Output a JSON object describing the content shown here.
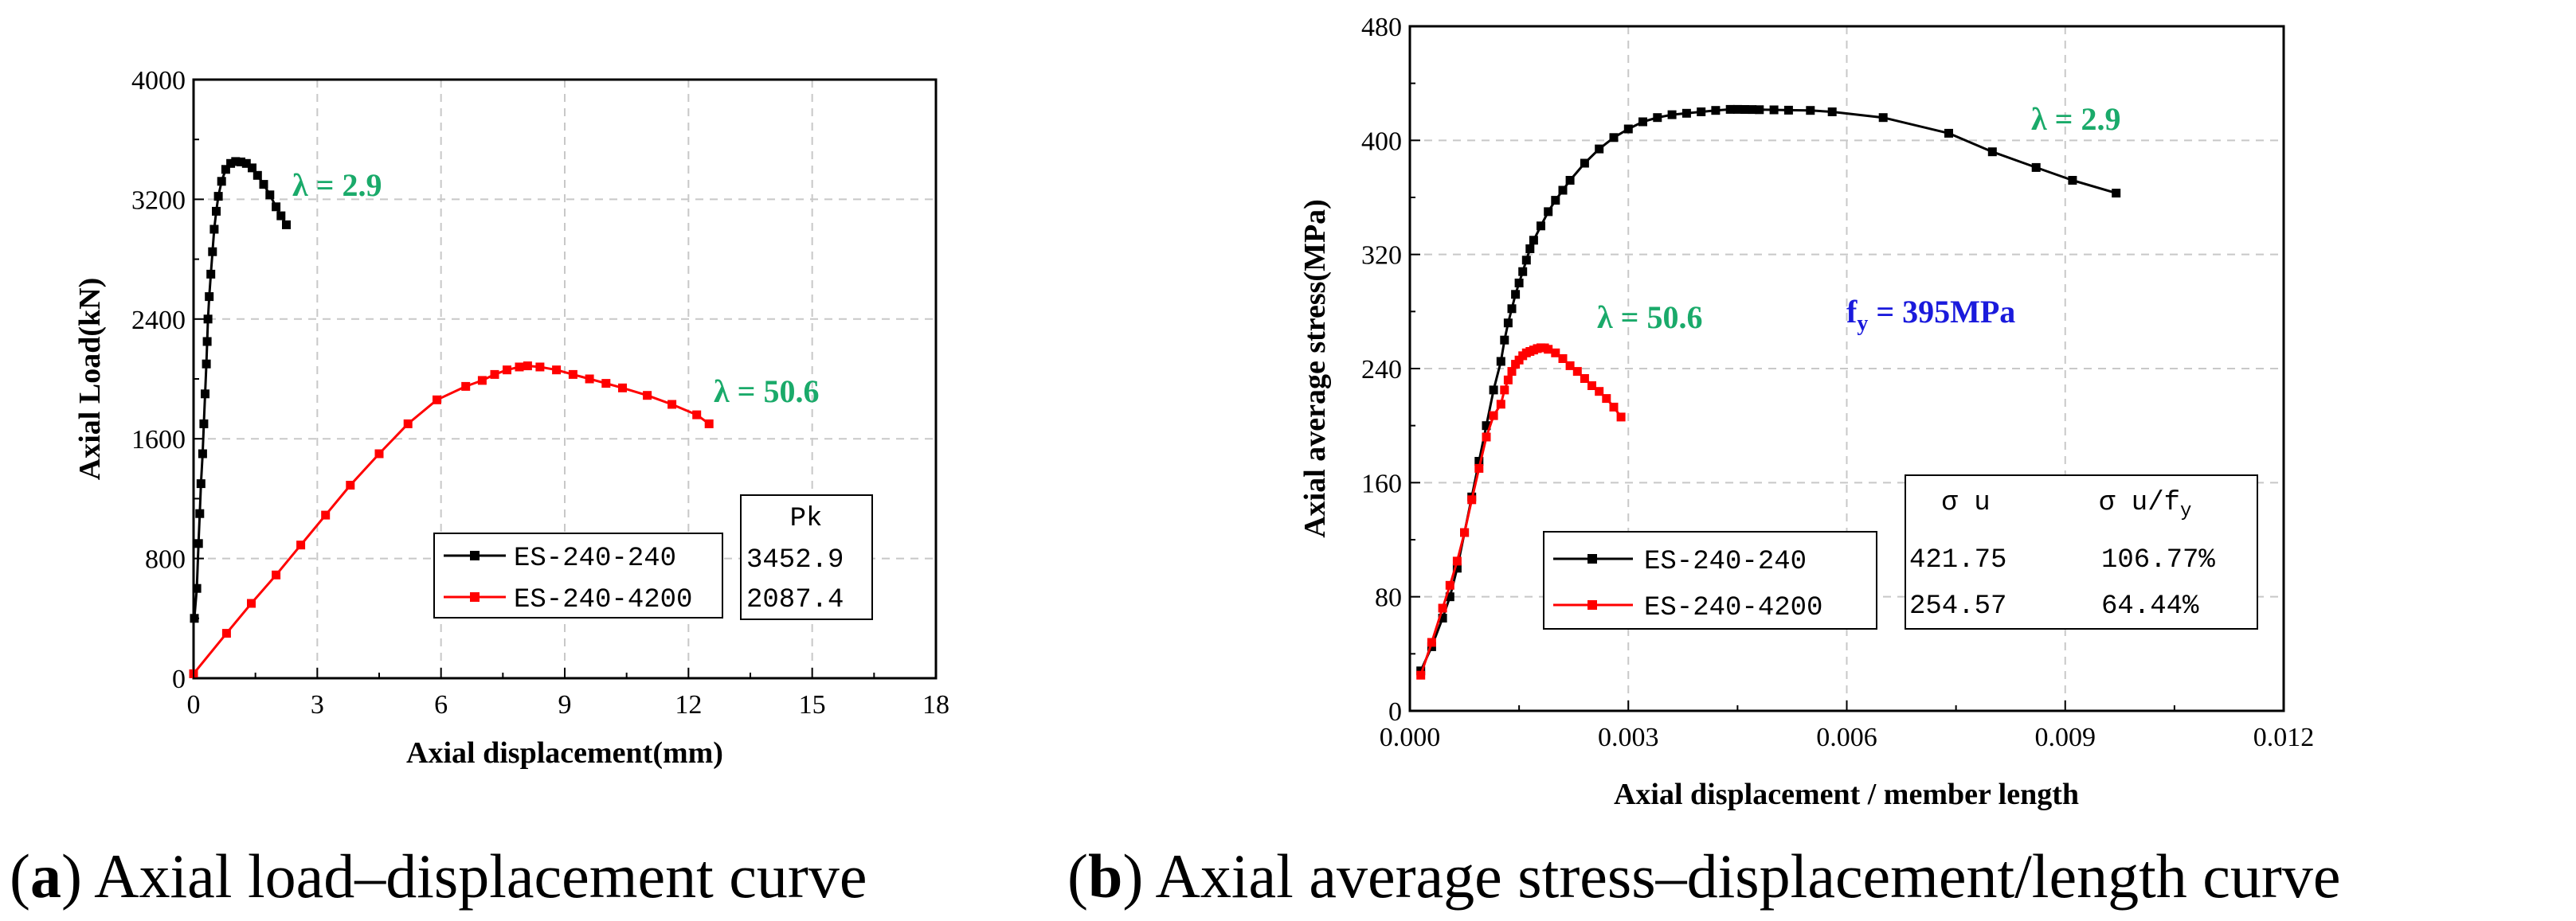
{
  "chart_data": [
    {
      "type": "line",
      "ylabel": "Axial Load(kN)",
      "xlabel": "Axial displacement(mm)",
      "xlim": [
        0,
        18
      ],
      "ylim": [
        0,
        4000
      ],
      "xticks": [
        "0",
        "3",
        "6",
        "9",
        "12",
        "15",
        "18"
      ],
      "yticks": [
        "0",
        "800",
        "1600",
        "2400",
        "3200",
        "4000"
      ],
      "grid": true,
      "legend_position": "bottom-right",
      "series": [
        {
          "name": "ES-240-240",
          "color": "#000000",
          "x": [
            0.02,
            0.08,
            0.12,
            0.15,
            0.18,
            0.22,
            0.25,
            0.28,
            0.31,
            0.33,
            0.35,
            0.38,
            0.42,
            0.46,
            0.5,
            0.55,
            0.6,
            0.68,
            0.78,
            0.9,
            1.02,
            1.15,
            1.28,
            1.42,
            1.55,
            1.7,
            1.85,
            2.0,
            2.12,
            2.25
          ],
          "y": [
            400,
            600,
            900,
            1100,
            1300,
            1500,
            1700,
            1900,
            2100,
            2250,
            2400,
            2550,
            2700,
            2850,
            3000,
            3120,
            3220,
            3320,
            3400,
            3440,
            3452.9,
            3450,
            3440,
            3410,
            3360,
            3300,
            3230,
            3150,
            3090,
            3030
          ]
        },
        {
          "name": "ES-240-4200",
          "color": "#ff0000",
          "x": [
            0,
            0.8,
            1.4,
            2.0,
            2.6,
            3.2,
            3.8,
            4.5,
            5.2,
            5.9,
            6.6,
            7.0,
            7.3,
            7.6,
            7.9,
            8.1,
            8.4,
            8.8,
            9.2,
            9.6,
            10.0,
            10.4,
            11.0,
            11.6,
            12.2,
            12.5
          ],
          "y": [
            30,
            300,
            500,
            690,
            890,
            1090,
            1290,
            1500,
            1700,
            1860,
            1950,
            1990,
            2030,
            2060,
            2080,
            2087.4,
            2080,
            2060,
            2030,
            2000,
            1970,
            1940,
            1890,
            1830,
            1760,
            1700
          ]
        }
      ],
      "annotations": [
        {
          "text": "λ = 2.9",
          "color": "#1aaa6a"
        },
        {
          "text": "λ = 50.6",
          "color": "#1aaa6a"
        }
      ],
      "table": {
        "header": [
          "Pk"
        ],
        "rows": [
          [
            "3452.9"
          ],
          [
            "2087.4"
          ]
        ]
      }
    },
    {
      "type": "line",
      "ylabel": "Axial average stress(MPa)",
      "xlabel": "Axial displacement / member length",
      "xlim": [
        0,
        0.012
      ],
      "ylim": [
        0,
        480
      ],
      "xticks": [
        "0.000",
        "0.003",
        "0.006",
        "0.009",
        "0.012"
      ],
      "yticks": [
        "0",
        "80",
        "160",
        "240",
        "320",
        "400",
        "480"
      ],
      "grid": true,
      "legend_position": "bottom-center",
      "series": [
        {
          "name": "ES-240-240",
          "color": "#000000",
          "x": [
            0.00015,
            0.0003,
            0.00045,
            0.00055,
            0.00065,
            0.00075,
            0.00085,
            0.00095,
            0.00105,
            0.00115,
            0.00125,
            0.0013,
            0.00135,
            0.0014,
            0.00145,
            0.0015,
            0.00155,
            0.0016,
            0.00165,
            0.0017,
            0.0018,
            0.0019,
            0.002,
            0.0021,
            0.0022,
            0.0024,
            0.0026,
            0.0028,
            0.003,
            0.0032,
            0.0034,
            0.0036,
            0.0038,
            0.004,
            0.0042,
            0.0044,
            0.0045,
            0.0046,
            0.0047,
            0.0048,
            0.005,
            0.0052,
            0.0055,
            0.0058,
            0.0065,
            0.0074,
            0.008,
            0.0086,
            0.0091,
            0.0097
          ],
          "y": [
            28,
            45,
            65,
            80,
            100,
            125,
            150,
            175,
            200,
            225,
            245,
            260,
            272,
            282,
            292,
            300,
            308,
            316,
            324,
            330,
            340,
            350,
            358,
            365,
            372,
            384,
            394,
            402,
            408,
            413,
            416,
            418,
            419,
            420,
            421,
            421.75,
            421.75,
            421.7,
            421.6,
            421.5,
            421.4,
            421.2,
            421,
            420,
            416,
            405,
            392,
            381,
            372,
            363
          ]
        },
        {
          "name": "ES-240-4200",
          "color": "#ff0000",
          "x": [
            0.00015,
            0.0003,
            0.00045,
            0.00055,
            0.00065,
            0.00075,
            0.00085,
            0.00095,
            0.00105,
            0.00115,
            0.00125,
            0.0013,
            0.00135,
            0.0014,
            0.00145,
            0.0015,
            0.00155,
            0.0016,
            0.00165,
            0.0017,
            0.00175,
            0.0018,
            0.00185,
            0.0019,
            0.002,
            0.0021,
            0.0022,
            0.0023,
            0.0024,
            0.0025,
            0.0026,
            0.0027,
            0.0028,
            0.0029
          ],
          "y": [
            25,
            48,
            72,
            88,
            105,
            125,
            148,
            170,
            192,
            207,
            215,
            225,
            232,
            238,
            243,
            246,
            249,
            251,
            252,
            253,
            254,
            254.57,
            254.5,
            253.5,
            251,
            247,
            242,
            238,
            233,
            228,
            224,
            219,
            213,
            206
          ]
        }
      ],
      "annotations": [
        {
          "text": "λ = 2.9",
          "color": "#1aaa6a"
        },
        {
          "text": "λ = 50.6",
          "color": "#1aaa6a"
        },
        {
          "text_main": "f",
          "text_sub": "y",
          "text_rest": " = 395MPa",
          "color": "#1a1adc"
        }
      ],
      "table": {
        "header_1": "σ u",
        "header_2": {
          "main": "σ u/f",
          "sub": "y"
        },
        "rows": [
          [
            "421.75",
            "106.77%"
          ],
          [
            "254.57",
            "64.44%"
          ]
        ]
      }
    }
  ],
  "captions": [
    {
      "letter": "a",
      "text": "Axial load–displacement curve"
    },
    {
      "letter": "b",
      "text": "Axial average stress–displacement/length curve"
    }
  ]
}
